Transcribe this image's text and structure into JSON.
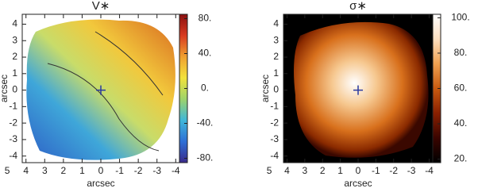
{
  "chart_data": [
    {
      "type": "image",
      "title": "V∗",
      "xlabel": "arcsec",
      "ylabel": "arcsec",
      "xlim": [
        4.2,
        -4.2
      ],
      "xticks": [
        5,
        4,
        3,
        2,
        1,
        0,
        -1,
        -2,
        -3,
        -4
      ],
      "ylim": [
        -4.4,
        4.6
      ],
      "yticks": [
        -4,
        -3,
        -2,
        -1,
        0,
        1,
        2,
        3,
        4
      ],
      "colorbar_lim": [
        -85,
        85
      ],
      "colorbar_ticks": [
        {
          "value": 80,
          "label": "80."
        },
        {
          "value": 40,
          "label": "40."
        },
        {
          "value": 0,
          "label": "0."
        },
        {
          "value": -40,
          "label": "-40."
        },
        {
          "value": -80,
          "label": "-80."
        }
      ],
      "colorbar_colors": [
        "#3a2a8a",
        "#2d6fd6",
        "#3fb7d9",
        "#9ed36a",
        "#f2e23c",
        "#f0a030",
        "#d83a20",
        "#8a1010"
      ]
    },
    {
      "type": "image",
      "title": "σ∗",
      "xlabel": "arcsec",
      "ylabel": "arcsec",
      "xlim": [
        4.2,
        -4.2
      ],
      "xticks": [
        5,
        4,
        3,
        2,
        1,
        0,
        -1,
        -2,
        -3,
        -4
      ],
      "ylim": [
        -4.4,
        4.6
      ],
      "yticks": [
        -4,
        -3,
        -2,
        -1,
        0,
        1,
        2,
        3,
        4
      ],
      "colorbar_lim": [
        18,
        102
      ],
      "colorbar_ticks": [
        {
          "value": 100,
          "label": "100."
        },
        {
          "value": 80,
          "label": "80."
        },
        {
          "value": 60,
          "label": "60."
        },
        {
          "value": 40,
          "label": "40."
        },
        {
          "value": 20,
          "label": "20."
        }
      ],
      "colorbar_colors": [
        "#000000",
        "#3a0500",
        "#8a2000",
        "#c85a10",
        "#f0a050",
        "#fde0c0",
        "#ffffff"
      ]
    }
  ]
}
